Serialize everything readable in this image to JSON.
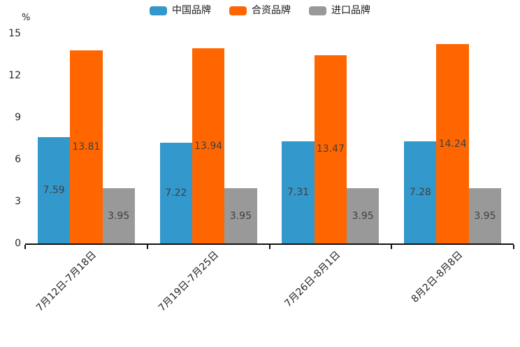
{
  "chart_data": {
    "type": "bar",
    "title": "",
    "categories": [
      "7月12日-7月18日",
      "7月19日-7月25日",
      "7月26日-8月1日",
      "8月2日-8月8日"
    ],
    "series": [
      {
        "name": "中国品牌",
        "color": "#3398CC",
        "values": [
          7.59,
          7.22,
          7.31,
          7.28
        ]
      },
      {
        "name": "合资品牌",
        "color": "#FF6600",
        "values": [
          13.81,
          13.94,
          13.47,
          14.24
        ]
      },
      {
        "name": "进口品牌",
        "color": "#999999",
        "values": [
          3.95,
          3.95,
          3.95,
          3.95
        ]
      }
    ],
    "xlabel": "",
    "ylabel": "%",
    "yticks": [
      0,
      3,
      6,
      9,
      12,
      15
    ],
    "ylim": [
      0,
      15
    ],
    "legend_position": "top-center",
    "grid": false,
    "value_label_position": "inside-center",
    "x_label_rotation_deg": 45
  }
}
